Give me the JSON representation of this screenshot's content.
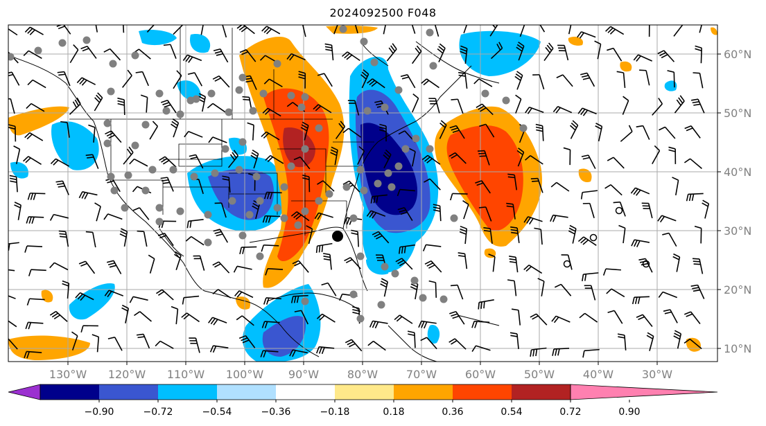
{
  "title": "2024092500 F048",
  "map": {
    "lon_labels": [
      "130°W",
      "120°W",
      "110°W",
      "100°W",
      "90°W",
      "80°W",
      "70°W",
      "60°W",
      "50°W",
      "40°W",
      "30°W"
    ],
    "lat_labels": [
      "60°N",
      "50°N",
      "40°N",
      "30°N",
      "20°N",
      "10°N"
    ]
  },
  "colorbar": {
    "labels": [
      "−0.90",
      "−0.72",
      "−0.54",
      "−0.36",
      "−0.18",
      "0.18",
      "0.36",
      "0.54",
      "0.72",
      "0.90"
    ],
    "colors": [
      "#9b30d0",
      "#00008b",
      "#3a56d0",
      "#00bfff",
      "#b0e0ff",
      "#ffffff",
      "#ffe98a",
      "#ffa500",
      "#ff4500",
      "#b22222",
      "#ff80b0"
    ]
  },
  "legend_icons": [
    "wind-barb-icon",
    "station-dot-icon",
    "calm-circle-icon"
  ]
}
